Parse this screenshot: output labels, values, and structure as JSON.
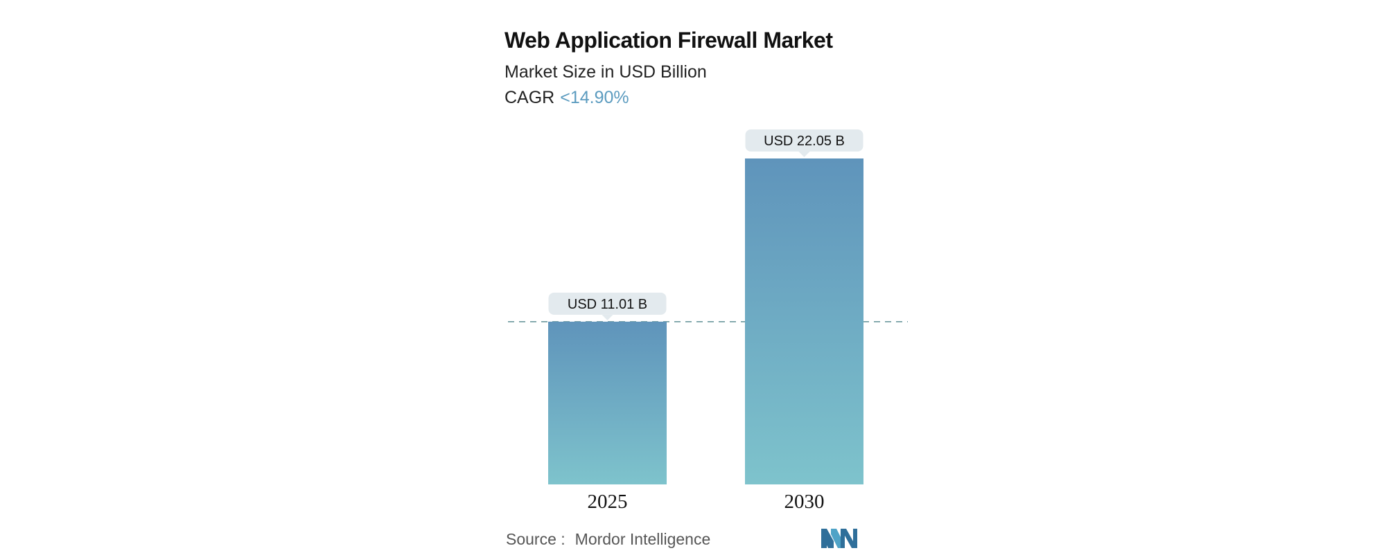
{
  "header": {
    "title": "Web Application Firewall Market",
    "subtitle": "Market Size in USD Billion",
    "cagr_label": "CAGR",
    "cagr_value": "<14.90%"
  },
  "chart_data": {
    "type": "bar",
    "categories": [
      "2025",
      "2030"
    ],
    "values": [
      11.01,
      22.05
    ],
    "data_labels": [
      "USD 11.01 B",
      "USD 22.05 B"
    ],
    "ylim": [
      0,
      22.05
    ],
    "grid": false,
    "colors": {
      "bar_top": "#5f94bb",
      "bar_bottom": "#7ec3cc",
      "label_bg": "#e3eaee",
      "reference_line": "#5f8f95"
    }
  },
  "footer": {
    "source_label": "Source :",
    "source_name": "Mordor Intelligence",
    "logo_icon": "mordor-intelligence-logo-icon"
  }
}
